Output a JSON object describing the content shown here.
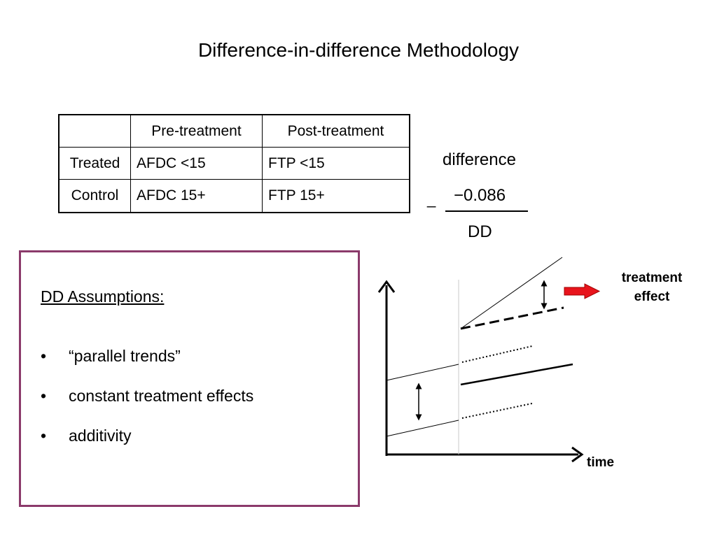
{
  "title": "Difference-in-difference Methodology",
  "table": {
    "headers": [
      "",
      "Pre-treatment",
      "Post-treatment"
    ],
    "rows": [
      [
        "Treated",
        "AFDC <15",
        "FTP <15"
      ],
      [
        "Control",
        "AFDC 15+",
        "FTP 15+"
      ]
    ]
  },
  "difference": {
    "label": "difference",
    "minus_sign": "_",
    "value": "−0.086",
    "result_label": "DD"
  },
  "assumptions": {
    "title": "DD Assumptions:",
    "bullet": "•",
    "items": [
      "“parallel trends”",
      "constant treatment effects",
      "additivity"
    ]
  },
  "graph": {
    "treatment_label_line1": "treatment",
    "treatment_label_line2": "effect",
    "x_axis_label": "time",
    "arrow_color": "#e8141c"
  },
  "colors": {
    "box_border": "#8b3a6b"
  }
}
